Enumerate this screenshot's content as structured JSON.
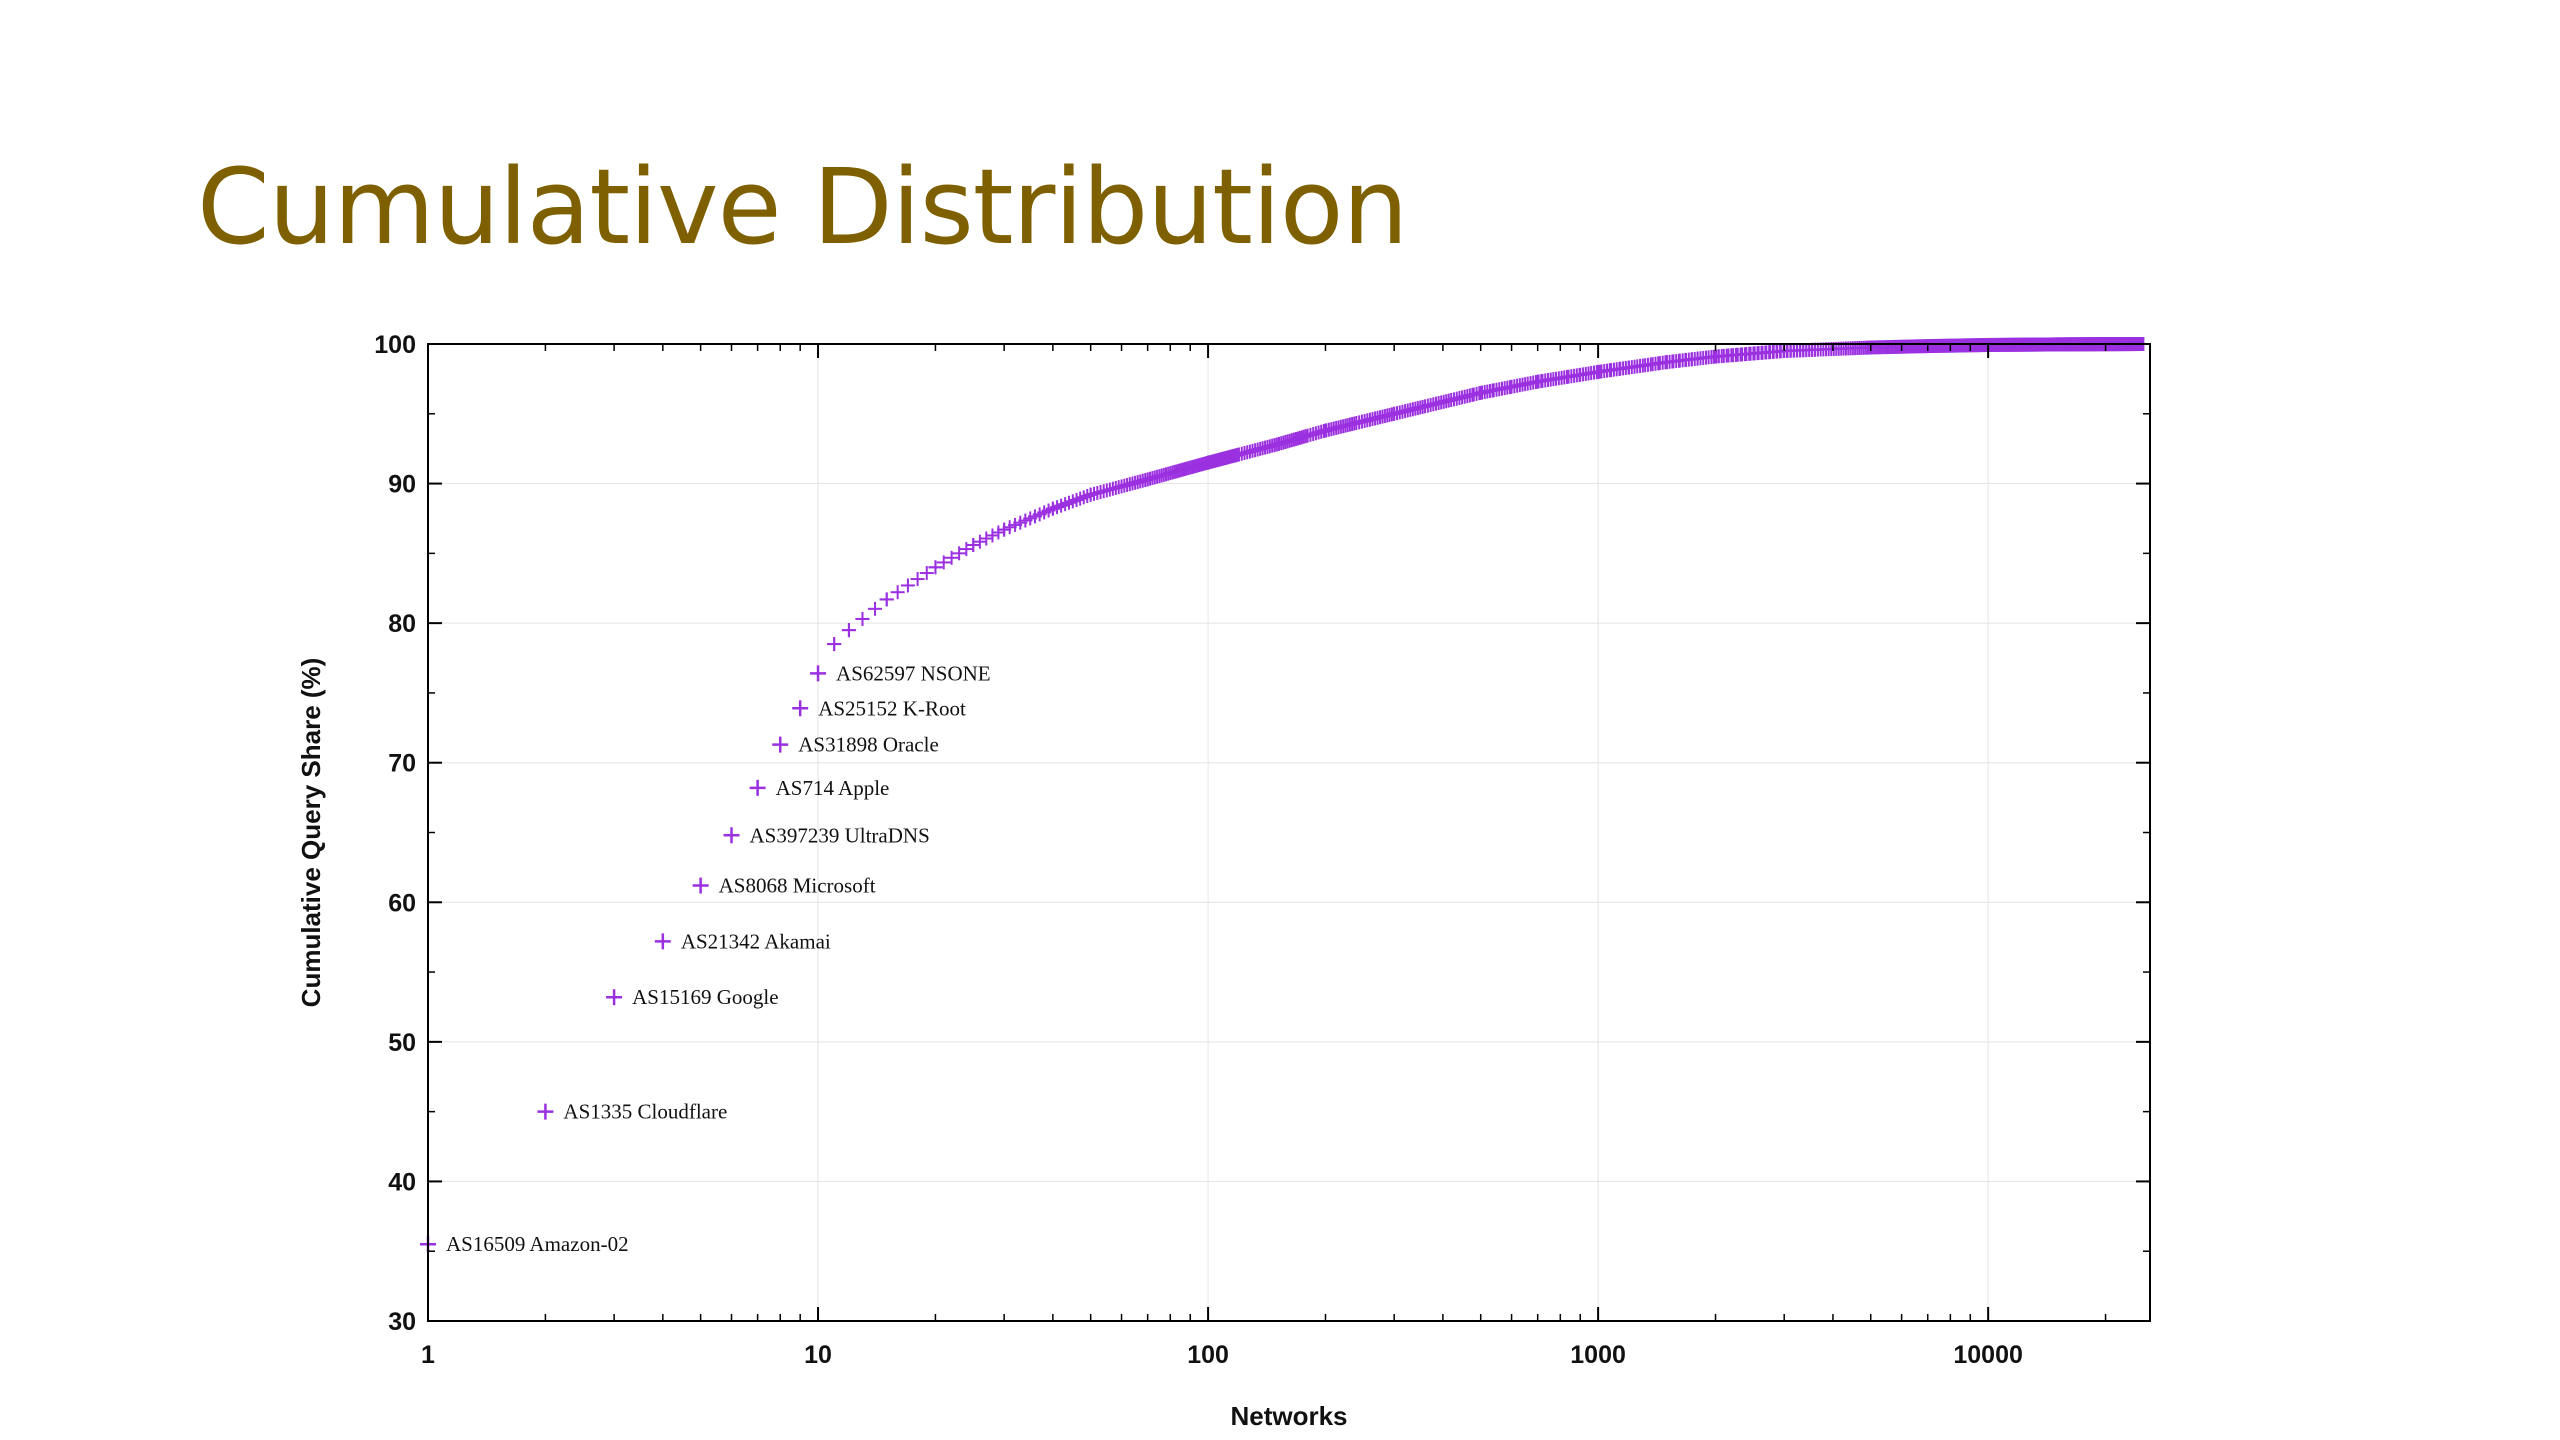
{
  "slide": {
    "title": "Cumulative Distribution"
  },
  "colors": {
    "title": "#7f6000",
    "series": "#9b30e0",
    "axis": "#000000"
  },
  "chart_data": {
    "type": "scatter",
    "title": "",
    "xlabel": "Networks",
    "ylabel": "Cumulative Query Share (%)",
    "xscale": "log",
    "xlim": [
      1,
      26000
    ],
    "ylim": [
      30,
      100
    ],
    "grid": true,
    "x_ticks": [
      "1",
      "10",
      "100",
      "1000",
      "10000"
    ],
    "y_ticks": [
      "30",
      "40",
      "50",
      "60",
      "70",
      "80",
      "90",
      "100"
    ],
    "labeled_points": [
      {
        "x": 1,
        "y": 35.5,
        "label": "AS16509 Amazon-02"
      },
      {
        "x": 2,
        "y": 45.0,
        "label": "AS1335 Cloudflare"
      },
      {
        "x": 3,
        "y": 53.2,
        "label": "AS15169 Google"
      },
      {
        "x": 4,
        "y": 57.2,
        "label": "AS21342 Akamai"
      },
      {
        "x": 5,
        "y": 61.2,
        "label": "AS8068 Microsoft"
      },
      {
        "x": 6,
        "y": 64.8,
        "label": "AS397239 UltraDNS"
      },
      {
        "x": 7,
        "y": 68.2,
        "label": "AS714 Apple"
      },
      {
        "x": 8,
        "y": 71.3,
        "label": "AS31898 Oracle"
      },
      {
        "x": 9,
        "y": 73.9,
        "label": "AS25152 K-Root"
      },
      {
        "x": 10,
        "y": 76.4,
        "label": "AS62597 NSONE"
      }
    ],
    "curve": [
      {
        "x": 11,
        "y": 78.5
      },
      {
        "x": 12,
        "y": 79.5
      },
      {
        "x": 13,
        "y": 80.3
      },
      {
        "x": 15,
        "y": 81.7
      },
      {
        "x": 20,
        "y": 84.0
      },
      {
        "x": 25,
        "y": 85.6
      },
      {
        "x": 30,
        "y": 86.7
      },
      {
        "x": 40,
        "y": 88.2
      },
      {
        "x": 50,
        "y": 89.2
      },
      {
        "x": 70,
        "y": 90.3
      },
      {
        "x": 100,
        "y": 91.5
      },
      {
        "x": 150,
        "y": 92.8
      },
      {
        "x": 200,
        "y": 93.8
      },
      {
        "x": 300,
        "y": 95.0
      },
      {
        "x": 500,
        "y": 96.5
      },
      {
        "x": 700,
        "y": 97.3
      },
      {
        "x": 1000,
        "y": 98.0
      },
      {
        "x": 1500,
        "y": 98.7
      },
      {
        "x": 2000,
        "y": 99.1
      },
      {
        "x": 3000,
        "y": 99.5
      },
      {
        "x": 5000,
        "y": 99.75
      },
      {
        "x": 7000,
        "y": 99.85
      },
      {
        "x": 10000,
        "y": 99.93
      },
      {
        "x": 15000,
        "y": 99.97
      },
      {
        "x": 20000,
        "y": 99.99
      },
      {
        "x": 25000,
        "y": 100.0
      }
    ]
  }
}
